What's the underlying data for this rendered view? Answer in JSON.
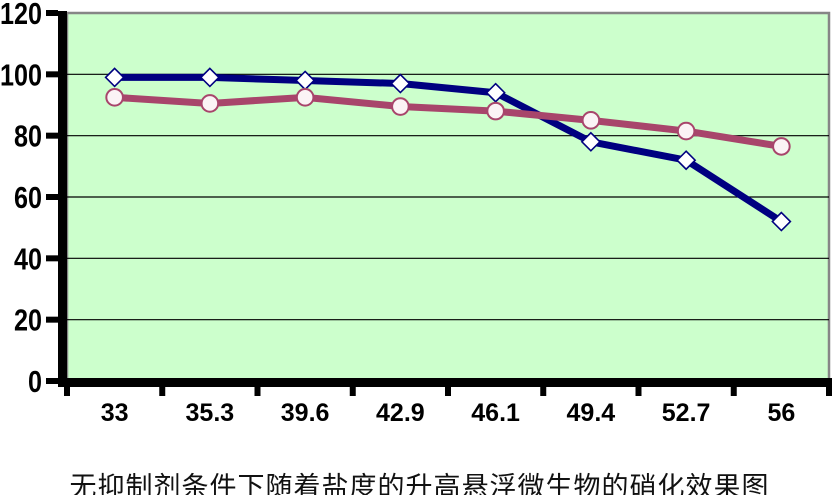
{
  "figure": {
    "caption": "无抑制剂条件下随着盐度的升高悬浮微生物的硝化效果图"
  },
  "chart_data": {
    "type": "line",
    "title": "",
    "xlabel": "",
    "ylabel": "",
    "categories": [
      "33",
      "35.3",
      "39.6",
      "42.9",
      "46.1",
      "49.4",
      "52.7",
      "56"
    ],
    "series": [
      {
        "name": "series-1",
        "marker": "diamond",
        "color": "#000080",
        "marker_fill": "#ffffff",
        "values": [
          99,
          99,
          98,
          97,
          94,
          78,
          72,
          52
        ]
      },
      {
        "name": "series-2",
        "marker": "circle",
        "color": "#A8456B",
        "marker_fill": "#FBF3F5",
        "values": [
          92.5,
          90.5,
          92.5,
          89.5,
          88,
          85,
          81.5,
          76.5
        ]
      }
    ],
    "ylim": [
      0,
      120
    ],
    "yticks": [
      0,
      20,
      40,
      60,
      80,
      100,
      120
    ],
    "grid": true,
    "legend": "none",
    "plot_bg": "#CCFFCC",
    "plot_border": "#868686",
    "axis_color": "#000000",
    "gridline_color": "#000000",
    "tick_label_color": "#000000"
  }
}
